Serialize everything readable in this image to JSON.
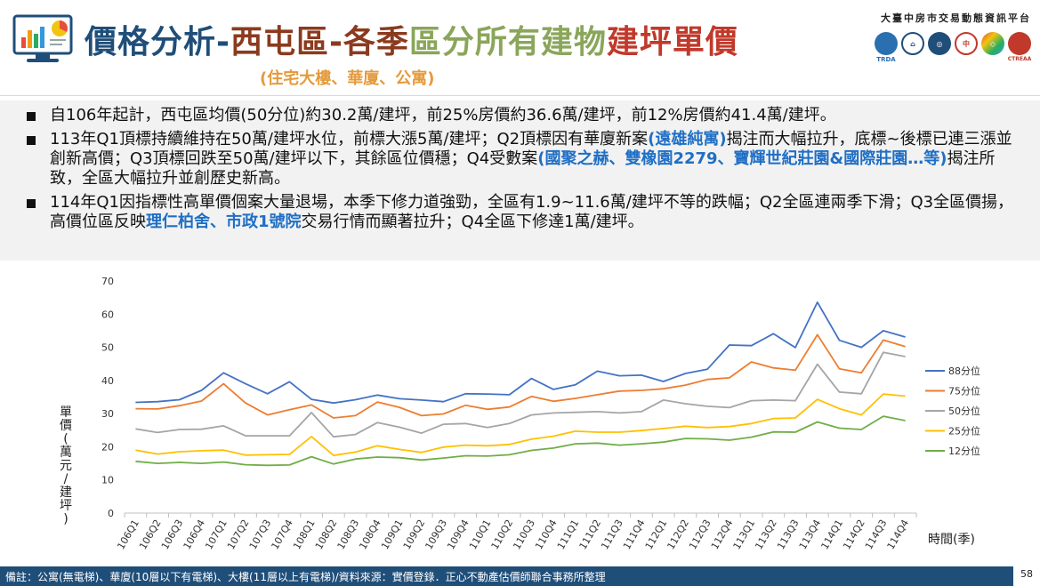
{
  "header": {
    "title_part1": "價格分析-",
    "title_part2": "西屯區-各季",
    "title_part3": "區分所有建物",
    "title_part4": "建坪單價",
    "subtitle": "(住宅大樓、華廈、公寓)",
    "org_name": "大臺中房市交易動態資訊平台",
    "org_logo_label": "TRDA",
    "org_logo_label2": "CTREAA"
  },
  "bullets": [
    {
      "segments": [
        {
          "text": "自106年起計，西屯區均價(50分位)約30.2萬/建坪，前25%房價約36.6萬/建坪，前12%房價約41.4萬/建坪。",
          "highlight": false
        }
      ]
    },
    {
      "segments": [
        {
          "text": "113年Q1頂標持續維持在50萬/建坪水位，前標大漲5萬/建坪；Q2頂標因有華廈新案",
          "highlight": false
        },
        {
          "text": "(遠雄純寓)",
          "highlight": true
        },
        {
          "text": "揭注而大幅拉升，底標~後標已連三漲並創新高價；Q3頂標回跌至50萬/建坪以下，其餘區位價穩；Q4受數案",
          "highlight": false
        },
        {
          "text": "(國聚之赫、雙橡園2279、寶輝世紀莊園&國際莊園…等)",
          "highlight": true
        },
        {
          "text": "揭注所致，全區大幅拉升並創歷史新高。",
          "highlight": false
        }
      ]
    },
    {
      "segments": [
        {
          "text": "114年Q1因指標性高單價個案大量退場，本季下修力道強勁，全區有1.9~11.6萬/建坪不等的跌幅；Q2全區連兩季下滑；Q3全區價揚，高價位區反映",
          "highlight": false
        },
        {
          "text": "理仁柏舍、市政1號院",
          "highlight": true
        },
        {
          "text": "交易行情而顯著拉升；Q4全區下修達1萬/建坪。",
          "highlight": false
        }
      ]
    }
  ],
  "footer": {
    "note": "備註：公寓(無電梯)、華廈(10層以下有電梯)、大樓(11層以上有電梯)/資料來源：實價登錄．正心不動產估價師聯合事務所整理",
    "page_number": "58"
  },
  "colors": {
    "title_blue": "#1f4e79",
    "title_red": "#c0392b",
    "title_green": "#8aa65a",
    "subtitle_orange": "#e59a3a",
    "highlight_blue": "#1f6fc5",
    "footer_bg": "#1f4e79"
  },
  "chart_data": {
    "type": "line",
    "title": "",
    "xlabel": "時間(季)",
    "ylabel": "單價(萬元/建坪)",
    "ylim": [
      0,
      70
    ],
    "yticks": [
      0,
      10,
      20,
      30,
      40,
      50,
      60,
      70
    ],
    "grid": false,
    "legend_position": "right",
    "categories": [
      "106Q1",
      "106Q2",
      "106Q3",
      "106Q4",
      "107Q1",
      "107Q2",
      "107Q3",
      "107Q4",
      "108Q1",
      "108Q2",
      "108Q3",
      "108Q4",
      "109Q1",
      "109Q2",
      "109Q3",
      "109Q4",
      "110Q1",
      "110Q2",
      "110Q3",
      "110Q4",
      "111Q1",
      "111Q2",
      "111Q3",
      "111Q4",
      "112Q1",
      "112Q2",
      "112Q3",
      "112Q4",
      "113Q1",
      "113Q2",
      "113Q3",
      "113Q4",
      "114Q1",
      "114Q2",
      "114Q3",
      "114Q4"
    ],
    "series": [
      {
        "name": "88分位",
        "color": "#4472c4",
        "values": [
          33.4,
          33.6,
          34.2,
          37.0,
          42.3,
          39.0,
          36.0,
          39.6,
          34.3,
          33.2,
          34.2,
          35.6,
          34.5,
          34.1,
          33.6,
          36.0,
          35.9,
          35.7,
          40.6,
          37.3,
          38.7,
          42.8,
          41.4,
          41.6,
          39.7,
          42.1,
          43.4,
          50.7,
          50.5,
          54.1,
          49.9,
          63.6,
          52.1,
          50.0,
          55.0,
          53.1
        ]
      },
      {
        "name": "75分位",
        "color": "#ed7d31",
        "values": [
          31.5,
          31.4,
          32.4,
          33.8,
          39.0,
          33.2,
          29.6,
          31.2,
          32.6,
          28.7,
          29.4,
          33.5,
          31.9,
          29.4,
          29.9,
          32.5,
          31.3,
          32.0,
          35.2,
          33.7,
          34.6,
          35.7,
          36.8,
          37.0,
          37.5,
          38.6,
          40.3,
          40.8,
          45.6,
          43.8,
          43.1,
          53.8,
          43.5,
          42.3,
          52.2,
          50.2
        ]
      },
      {
        "name": "50分位",
        "color": "#a5a5a5",
        "values": [
          25.4,
          24.3,
          25.2,
          25.3,
          26.3,
          23.3,
          23.3,
          23.3,
          30.3,
          23.0,
          23.7,
          27.3,
          25.9,
          24.1,
          26.8,
          27.0,
          25.8,
          27.0,
          29.6,
          30.2,
          30.4,
          30.6,
          30.2,
          30.6,
          34.1,
          33.0,
          32.2,
          31.8,
          33.9,
          34.1,
          33.9,
          44.9,
          36.5,
          36.0,
          48.5,
          47.2
        ]
      },
      {
        "name": "25分位",
        "color": "#ffc000",
        "values": [
          19.0,
          17.8,
          18.5,
          18.8,
          19.0,
          17.5,
          17.6,
          17.7,
          23.1,
          17.4,
          18.4,
          20.3,
          19.2,
          18.3,
          19.9,
          20.5,
          20.3,
          20.7,
          22.3,
          23.2,
          24.7,
          24.4,
          24.4,
          24.9,
          25.5,
          26.2,
          25.8,
          26.1,
          27.0,
          28.5,
          28.7,
          34.3,
          31.5,
          29.6,
          35.9,
          35.3
        ]
      },
      {
        "name": "12分位",
        "color": "#70ad47",
        "values": [
          15.6,
          15.0,
          15.3,
          15.0,
          15.4,
          14.6,
          14.4,
          14.5,
          17.0,
          14.8,
          16.3,
          16.9,
          16.7,
          16.0,
          16.6,
          17.3,
          17.2,
          17.6,
          18.9,
          19.6,
          20.9,
          21.1,
          20.5,
          20.9,
          21.4,
          22.5,
          22.4,
          22.0,
          22.9,
          24.5,
          24.4,
          27.5,
          25.6,
          25.2,
          29.2,
          27.9
        ]
      }
    ]
  }
}
